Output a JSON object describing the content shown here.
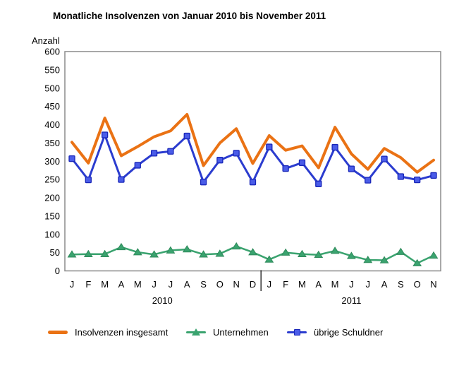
{
  "title": "Monatliche Insolvenzen von Januar 2010 bis November 2011",
  "y_axis": {
    "label": "Anzahl",
    "ticks": [
      600,
      550,
      500,
      450,
      400,
      350,
      300,
      250,
      200,
      150,
      100,
      50,
      0
    ]
  },
  "x_axis": {
    "month_labels": [
      "J",
      "F",
      "M",
      "A",
      "M",
      "J",
      "J",
      "A",
      "S",
      "O",
      "N",
      "D",
      "J",
      "F",
      "M",
      "A",
      "M",
      "J",
      "J",
      "A",
      "S",
      "O",
      "N"
    ],
    "year_groups": [
      {
        "label": "2010",
        "from": 0,
        "to": 11
      },
      {
        "label": "2011",
        "from": 12,
        "to": 22
      }
    ]
  },
  "legend": {
    "items": [
      {
        "label": "Insolvenzen insgesamt"
      },
      {
        "label": "Unternehmen"
      },
      {
        "label": "übrige Schuldner"
      }
    ]
  },
  "chart_data": {
    "type": "line",
    "title": "Monatliche Insolvenzen von Januar 2010 bis November 2011",
    "ylabel": "Anzahl",
    "ylim": [
      0,
      600
    ],
    "grid": false,
    "legend_position": "bottom",
    "categories": [
      "2010-01",
      "2010-02",
      "2010-03",
      "2010-04",
      "2010-05",
      "2010-06",
      "2010-07",
      "2010-08",
      "2010-09",
      "2010-10",
      "2010-11",
      "2010-12",
      "2011-01",
      "2011-02",
      "2011-03",
      "2011-04",
      "2011-05",
      "2011-06",
      "2011-07",
      "2011-08",
      "2011-09",
      "2011-10",
      "2011-11"
    ],
    "series": [
      {
        "id": "insolvenzen-insgesamt",
        "name": "Insolvenzen insgesamt",
        "color": "#EA7214",
        "width": 4,
        "marker": "none",
        "marker_fill": "#EA7214",
        "marker_stroke": "#EA7214",
        "values": [
          352,
          295,
          418,
          315,
          340,
          367,
          383,
          428,
          288,
          350,
          389,
          294,
          370,
          330,
          342,
          282,
          393,
          320,
          278,
          335,
          310,
          270,
          303
        ]
      },
      {
        "id": "unternehmen",
        "name": "Unternehmen",
        "color": "#3AA36F",
        "width": 2.5,
        "marker": "triangle",
        "marker_fill": "#3AA36F",
        "marker_stroke": "#2F8A5B",
        "values": [
          45,
          46,
          46,
          65,
          51,
          45,
          56,
          59,
          45,
          47,
          67,
          51,
          31,
          50,
          46,
          44,
          55,
          41,
          30,
          29,
          52,
          21,
          42
        ]
      },
      {
        "id": "uebrige-schuldner",
        "name": "übrige Schuldner",
        "color": "#2B3CCF",
        "width": 3,
        "marker": "square",
        "marker_fill": "#4A5CE8",
        "marker_stroke": "#1826B8",
        "values": [
          307,
          249,
          372,
          250,
          289,
          322,
          327,
          369,
          243,
          303,
          322,
          243,
          339,
          280,
          296,
          238,
          338,
          279,
          248,
          306,
          258,
          249,
          261
        ]
      }
    ]
  }
}
